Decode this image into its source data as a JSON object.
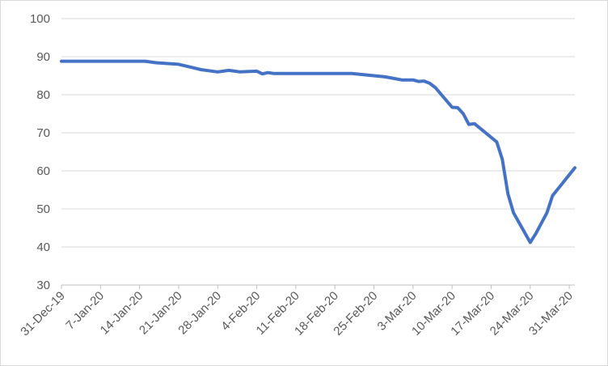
{
  "chart_data": {
    "type": "line",
    "title": "",
    "xlabel": "",
    "ylabel": "",
    "ylim": [
      30,
      100
    ],
    "yticks": [
      30,
      40,
      50,
      60,
      70,
      80,
      90,
      100
    ],
    "xlim": [
      "2019-12-31",
      "2020-04-01"
    ],
    "xticks": [
      {
        "date": "2019-12-31",
        "label": "31-Dec-19"
      },
      {
        "date": "2020-01-07",
        "label": "7-Jan-20"
      },
      {
        "date": "2020-01-14",
        "label": "14-Jan-20"
      },
      {
        "date": "2020-01-21",
        "label": "21-Jan-20"
      },
      {
        "date": "2020-01-28",
        "label": "28-Jan-20"
      },
      {
        "date": "2020-02-04",
        "label": "4-Feb-20"
      },
      {
        "date": "2020-02-11",
        "label": "11-Feb-20"
      },
      {
        "date": "2020-02-18",
        "label": "18-Feb-20"
      },
      {
        "date": "2020-02-25",
        "label": "25-Feb-20"
      },
      {
        "date": "2020-03-03",
        "label": "3-Mar-20"
      },
      {
        "date": "2020-03-10",
        "label": "10-Mar-20"
      },
      {
        "date": "2020-03-17",
        "label": "17-Mar-20"
      },
      {
        "date": "2020-03-24",
        "label": "24-Mar-20"
      },
      {
        "date": "2020-03-31",
        "label": "31-Mar-20"
      }
    ],
    "grid": true,
    "legend": "none",
    "series": [
      {
        "color": "#4472c4",
        "points": [
          {
            "x": "2019-12-31",
            "y": 88.8
          },
          {
            "x": "2020-01-10",
            "y": 88.8
          },
          {
            "x": "2020-01-15",
            "y": 88.8
          },
          {
            "x": "2020-01-17",
            "y": 88.4
          },
          {
            "x": "2020-01-21",
            "y": 88.0
          },
          {
            "x": "2020-01-23",
            "y": 87.3
          },
          {
            "x": "2020-01-25",
            "y": 86.6
          },
          {
            "x": "2020-01-28",
            "y": 86.0
          },
          {
            "x": "2020-01-30",
            "y": 86.4
          },
          {
            "x": "2020-02-01",
            "y": 86.0
          },
          {
            "x": "2020-02-04",
            "y": 86.2
          },
          {
            "x": "2020-02-05",
            "y": 85.5
          },
          {
            "x": "2020-02-06",
            "y": 85.8
          },
          {
            "x": "2020-02-07",
            "y": 85.6
          },
          {
            "x": "2020-02-21",
            "y": 85.6
          },
          {
            "x": "2020-02-25",
            "y": 85.0
          },
          {
            "x": "2020-02-27",
            "y": 84.7
          },
          {
            "x": "2020-03-01",
            "y": 83.9
          },
          {
            "x": "2020-03-03",
            "y": 83.9
          },
          {
            "x": "2020-03-04",
            "y": 83.5
          },
          {
            "x": "2020-03-05",
            "y": 83.6
          },
          {
            "x": "2020-03-06",
            "y": 83.0
          },
          {
            "x": "2020-03-07",
            "y": 81.9
          },
          {
            "x": "2020-03-10",
            "y": 76.7
          },
          {
            "x": "2020-03-11",
            "y": 76.6
          },
          {
            "x": "2020-03-12",
            "y": 75.0
          },
          {
            "x": "2020-03-13",
            "y": 72.2
          },
          {
            "x": "2020-03-14",
            "y": 72.4
          },
          {
            "x": "2020-03-18",
            "y": 67.6
          },
          {
            "x": "2020-03-19",
            "y": 63.0
          },
          {
            "x": "2020-03-20",
            "y": 54.0
          },
          {
            "x": "2020-03-21",
            "y": 49.0
          },
          {
            "x": "2020-03-24",
            "y": 41.2
          },
          {
            "x": "2020-03-25",
            "y": 43.5
          },
          {
            "x": "2020-03-27",
            "y": 49.0
          },
          {
            "x": "2020-03-28",
            "y": 53.5
          },
          {
            "x": "2020-04-01",
            "y": 60.8
          }
        ]
      }
    ]
  }
}
